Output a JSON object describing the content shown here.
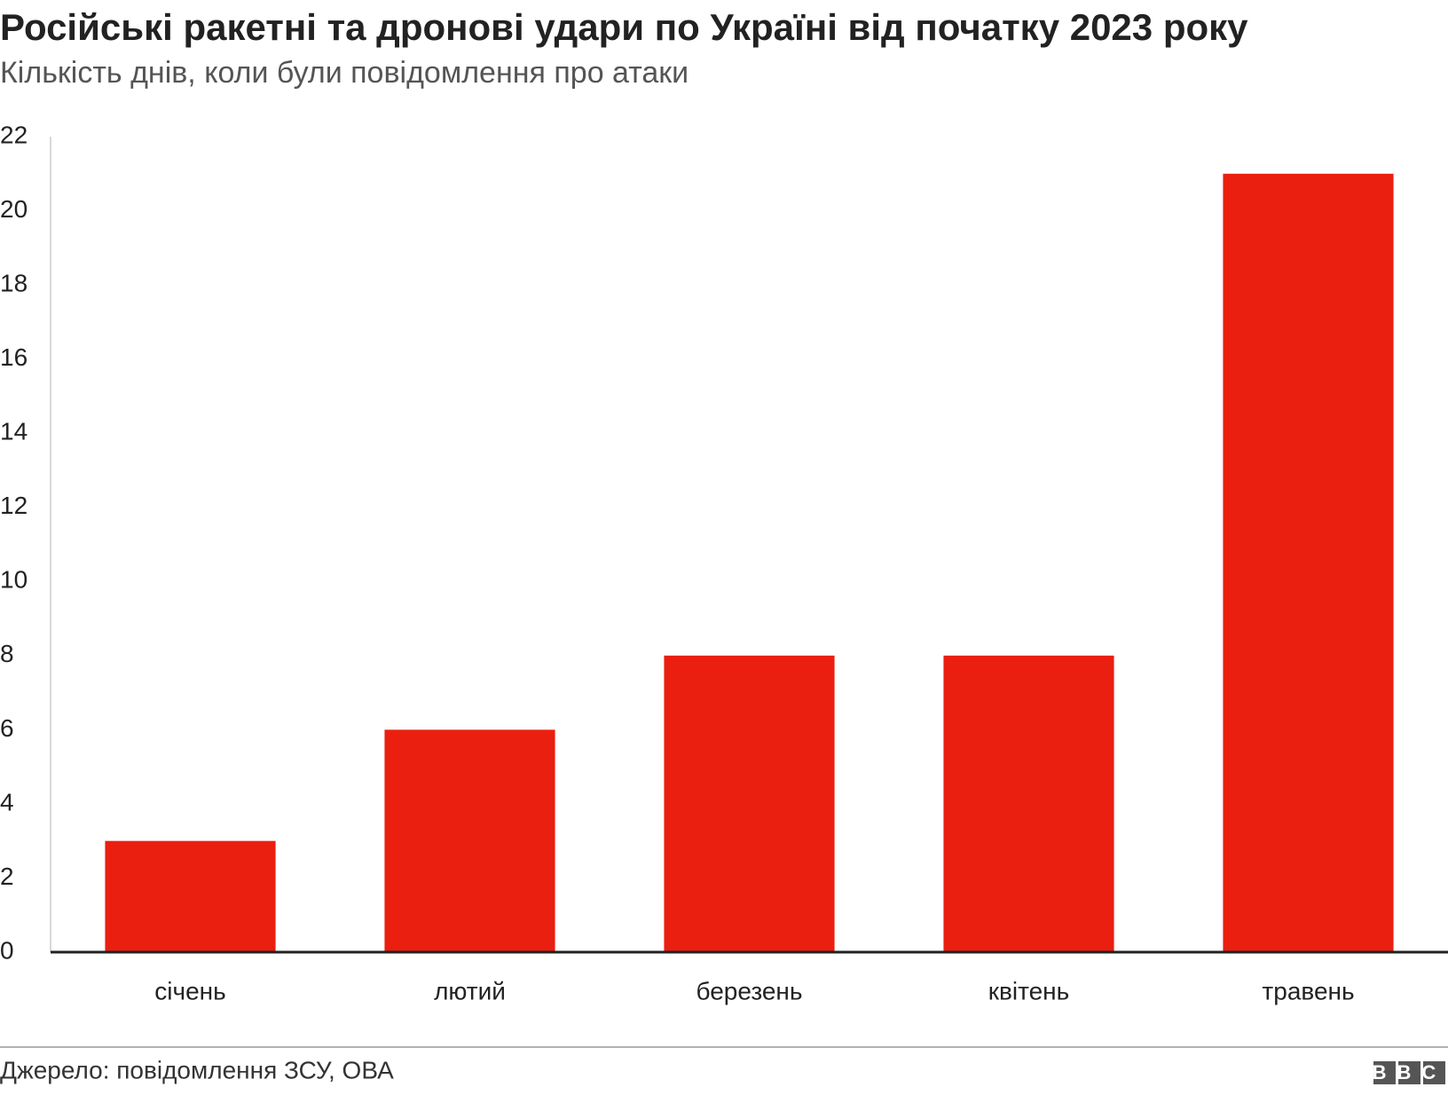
{
  "chart_data": {
    "type": "bar",
    "title": "Російські ракетні та дронові удари по Україні від початку 2023 року",
    "subtitle": "Кількість днів, коли були повідомлення про атаки",
    "categories": [
      "січень",
      "лютий",
      "березень",
      "квітень",
      "травень"
    ],
    "values": [
      3,
      6,
      8,
      8,
      21
    ],
    "color": "#ea1f10",
    "ylim": [
      0,
      22
    ],
    "yticks": [
      0,
      2,
      4,
      6,
      8,
      10,
      12,
      14,
      16,
      18,
      20,
      22
    ],
    "grid": false,
    "source": "Джерело: повідомлення ЗСУ, ОВА",
    "logo": "BBC"
  }
}
